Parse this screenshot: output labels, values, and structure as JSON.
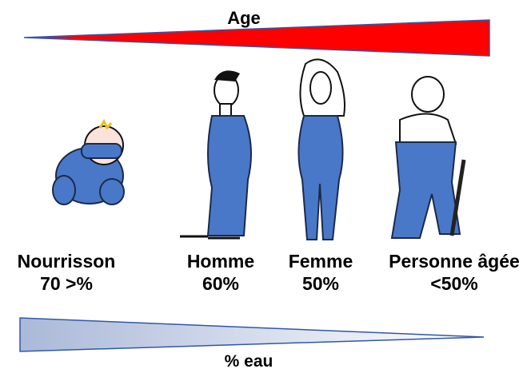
{
  "top_label": "Age",
  "groups": [
    {
      "name": "Nourrisson",
      "value": "70 >%"
    },
    {
      "name": "Homme",
      "value": "60%"
    },
    {
      "name": "Femme",
      "value": "50%"
    },
    {
      "name": "Personne âgée",
      "value": "<50%"
    }
  ],
  "bottom_label": "% eau"
}
